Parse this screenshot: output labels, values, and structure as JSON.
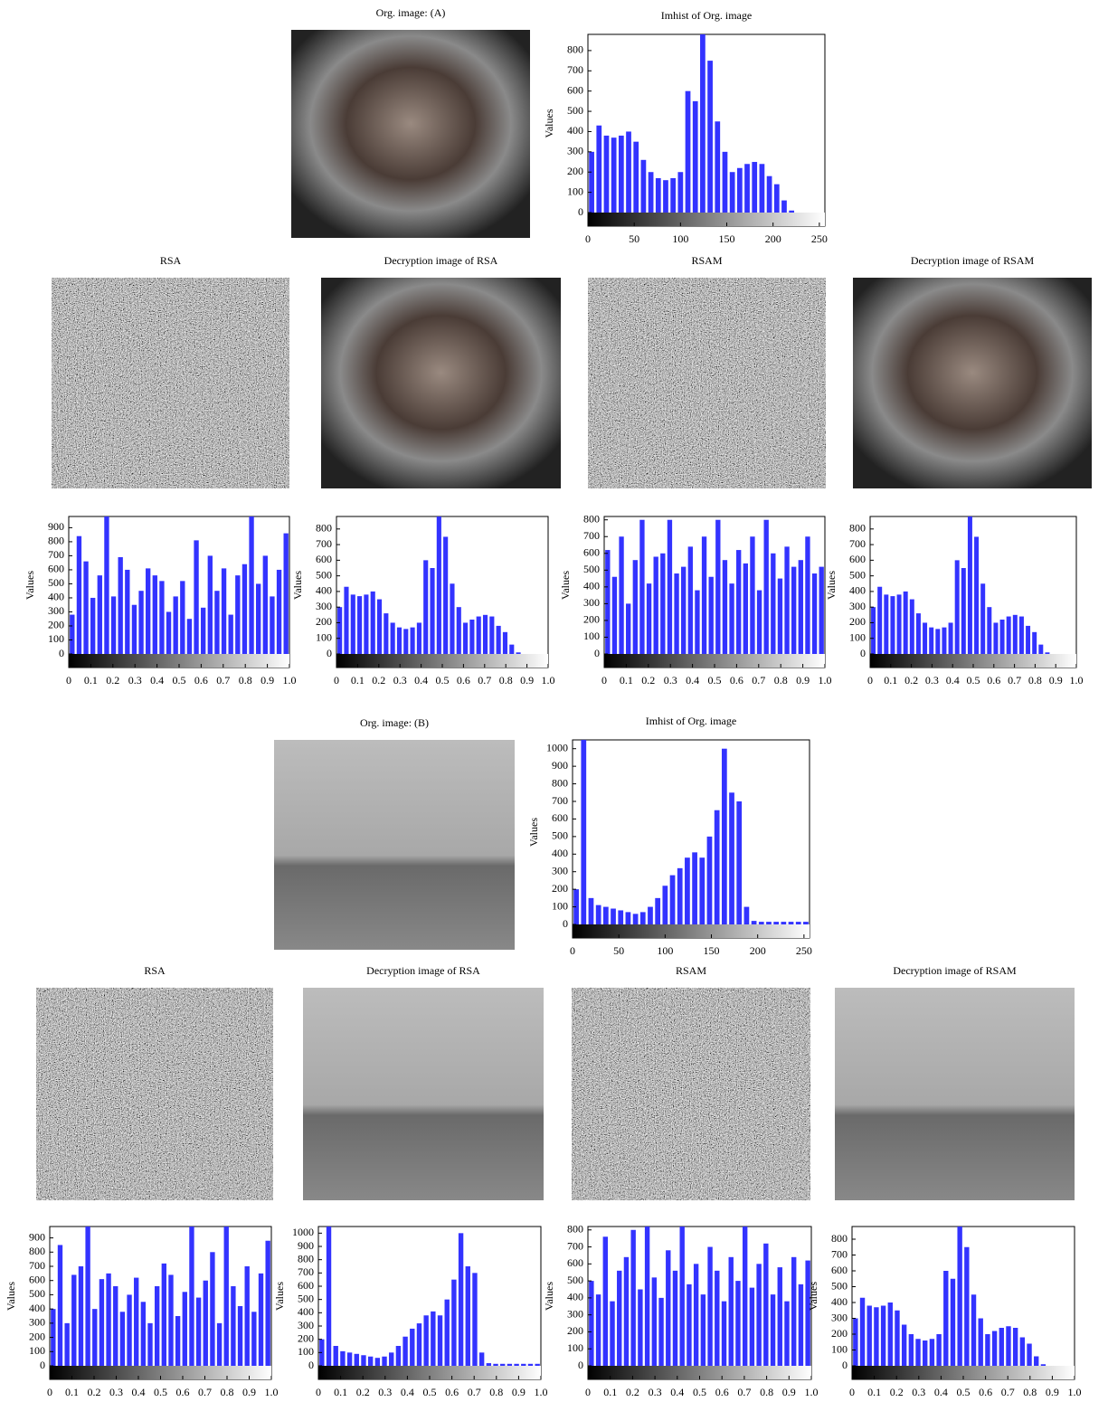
{
  "images": [
    {
      "title": "Org. image: (A)"
    },
    {
      "title": "RSA"
    },
    {
      "title": "Decryption image of RSA"
    },
    {
      "title": "RSAM"
    },
    {
      "title": "Decryption image of RSAM"
    },
    {
      "title": "Org. image: (B)"
    },
    {
      "title": "RSA"
    },
    {
      "title": "Decryption image of RSA"
    },
    {
      "title": "RSAM"
    },
    {
      "title": "Decryption image of RSAM"
    }
  ],
  "chart_data": [
    {
      "type": "histogram",
      "title": "Imhist of Org. image",
      "ylabel": "Values",
      "color": "#3333ff",
      "bins": [
        0,
        8,
        16,
        24,
        32,
        40,
        48,
        56,
        64,
        72,
        80,
        88,
        96,
        104,
        112,
        120,
        128,
        136,
        144,
        152,
        160,
        168,
        176,
        184,
        192,
        200,
        208,
        216,
        224,
        232,
        240,
        248,
        256
      ],
      "values": [
        300,
        430,
        380,
        370,
        380,
        400,
        350,
        260,
        200,
        170,
        160,
        170,
        200,
        600,
        550,
        880,
        750,
        450,
        300,
        200,
        220,
        240,
        250,
        240,
        180,
        140,
        60,
        10,
        0,
        0,
        0,
        0
      ],
      "xlim": [
        0,
        256
      ],
      "xticks": [
        0,
        50,
        100,
        150,
        200,
        250
      ],
      "ylim": [
        0,
        880
      ],
      "yticks": [
        0,
        100,
        200,
        300,
        400,
        500,
        600,
        700,
        800
      ]
    },
    {
      "type": "histogram",
      "ylabel": "Values",
      "color": "#3333ff",
      "bins": [
        0,
        0.03125,
        0.0625,
        0.09375,
        0.125,
        0.15625,
        0.1875,
        0.21875,
        0.25,
        0.28125,
        0.3125,
        0.34375,
        0.375,
        0.40625,
        0.4375,
        0.46875,
        0.5,
        0.53125,
        0.5625,
        0.59375,
        0.625,
        0.65625,
        0.6875,
        0.71875,
        0.75,
        0.78125,
        0.8125,
        0.84375,
        0.875,
        0.90625,
        0.9375,
        0.96875,
        1
      ],
      "values": [
        280,
        840,
        660,
        400,
        560,
        980,
        410,
        690,
        600,
        350,
        450,
        610,
        560,
        520,
        300,
        410,
        520,
        250,
        810,
        330,
        700,
        450,
        610,
        280,
        560,
        640,
        980,
        500,
        700,
        410,
        600,
        860
      ],
      "xlim": [
        0,
        1
      ],
      "xticks": [
        0,
        0.1,
        0.2,
        0.3,
        0.4,
        0.5,
        0.6,
        0.7,
        0.8,
        0.9,
        {
          "value": 1,
          "label": "1.0"
        }
      ],
      "ylim": [
        0,
        980
      ],
      "yticks": [
        0,
        100,
        200,
        300,
        400,
        500,
        600,
        700,
        800,
        900
      ]
    },
    {
      "type": "histogram",
      "ylabel": "Values",
      "color": "#3333ff",
      "bins": [
        0,
        0.03125,
        0.0625,
        0.09375,
        0.125,
        0.15625,
        0.1875,
        0.21875,
        0.25,
        0.28125,
        0.3125,
        0.34375,
        0.375,
        0.40625,
        0.4375,
        0.46875,
        0.5,
        0.53125,
        0.5625,
        0.59375,
        0.625,
        0.65625,
        0.6875,
        0.71875,
        0.75,
        0.78125,
        0.8125,
        0.84375,
        0.875,
        0.90625,
        0.9375,
        0.96875,
        1
      ],
      "values": [
        300,
        430,
        380,
        370,
        380,
        400,
        350,
        260,
        200,
        170,
        160,
        170,
        200,
        600,
        550,
        880,
        750,
        450,
        300,
        200,
        220,
        240,
        250,
        240,
        180,
        140,
        60,
        10,
        0,
        0,
        0,
        0
      ],
      "xlim": [
        0,
        1
      ],
      "xticks": [
        0,
        0.1,
        0.2,
        0.3,
        0.4,
        0.5,
        0.6,
        0.7,
        0.8,
        0.9,
        {
          "value": 1,
          "label": "1.0"
        }
      ],
      "ylim": [
        0,
        880
      ],
      "yticks": [
        0,
        100,
        200,
        300,
        400,
        500,
        600,
        700,
        800
      ]
    },
    {
      "type": "histogram",
      "ylabel": "Values",
      "color": "#3333ff",
      "bins": [
        0,
        0.03125,
        0.0625,
        0.09375,
        0.125,
        0.15625,
        0.1875,
        0.21875,
        0.25,
        0.28125,
        0.3125,
        0.34375,
        0.375,
        0.40625,
        0.4375,
        0.46875,
        0.5,
        0.53125,
        0.5625,
        0.59375,
        0.625,
        0.65625,
        0.6875,
        0.71875,
        0.75,
        0.78125,
        0.8125,
        0.84375,
        0.875,
        0.90625,
        0.9375,
        0.96875,
        1
      ],
      "values": [
        620,
        460,
        700,
        300,
        560,
        800,
        420,
        580,
        600,
        800,
        480,
        520,
        640,
        380,
        700,
        460,
        800,
        560,
        420,
        620,
        540,
        700,
        380,
        800,
        600,
        450,
        640,
        520,
        560,
        700,
        480,
        520
      ],
      "xlim": [
        0,
        1
      ],
      "xticks": [
        0,
        0.1,
        0.2,
        0.3,
        0.4,
        0.5,
        0.6,
        0.7,
        0.8,
        0.9,
        {
          "value": 1,
          "label": "1.0"
        }
      ],
      "ylim": [
        0,
        820
      ],
      "yticks": [
        0,
        100,
        200,
        300,
        400,
        500,
        600,
        700,
        800
      ]
    },
    {
      "type": "histogram",
      "ylabel": "Values",
      "color": "#3333ff",
      "bins": [
        0,
        0.03125,
        0.0625,
        0.09375,
        0.125,
        0.15625,
        0.1875,
        0.21875,
        0.25,
        0.28125,
        0.3125,
        0.34375,
        0.375,
        0.40625,
        0.4375,
        0.46875,
        0.5,
        0.53125,
        0.5625,
        0.59375,
        0.625,
        0.65625,
        0.6875,
        0.71875,
        0.75,
        0.78125,
        0.8125,
        0.84375,
        0.875,
        0.90625,
        0.9375,
        0.96875,
        1
      ],
      "values": [
        300,
        430,
        380,
        370,
        380,
        400,
        350,
        260,
        200,
        170,
        160,
        170,
        200,
        600,
        550,
        880,
        750,
        450,
        300,
        200,
        220,
        240,
        250,
        240,
        180,
        140,
        60,
        10,
        0,
        0,
        0,
        0
      ],
      "xlim": [
        0,
        1
      ],
      "xticks": [
        0,
        0.1,
        0.2,
        0.3,
        0.4,
        0.5,
        0.6,
        0.7,
        0.8,
        0.9,
        {
          "value": 1,
          "label": "1.0"
        }
      ],
      "ylim": [
        0,
        880
      ],
      "yticks": [
        0,
        100,
        200,
        300,
        400,
        500,
        600,
        700,
        800
      ]
    },
    {
      "type": "histogram",
      "title": "Imhist of Org. image",
      "ylabel": "Values",
      "color": "#3333ff",
      "bins": [
        0,
        8,
        16,
        24,
        32,
        40,
        48,
        56,
        64,
        72,
        80,
        88,
        96,
        104,
        112,
        120,
        128,
        136,
        144,
        152,
        160,
        168,
        176,
        184,
        192,
        200,
        208,
        216,
        224,
        232,
        240,
        248,
        256
      ],
      "values": [
        200,
        1050,
        150,
        110,
        100,
        90,
        80,
        70,
        60,
        70,
        100,
        150,
        220,
        280,
        320,
        380,
        410,
        380,
        500,
        650,
        1000,
        750,
        700,
        100,
        20,
        15,
        15,
        15,
        15,
        15,
        15,
        15
      ],
      "xlim": [
        0,
        256
      ],
      "xticks": [
        0,
        50,
        100,
        150,
        200,
        250
      ],
      "ylim": [
        0,
        1050
      ],
      "yticks": [
        0,
        100,
        200,
        300,
        400,
        500,
        600,
        700,
        800,
        900,
        1000
      ]
    },
    {
      "type": "histogram",
      "ylabel": "Values",
      "color": "#3333ff",
      "bins": [
        0,
        0.03125,
        0.0625,
        0.09375,
        0.125,
        0.15625,
        0.1875,
        0.21875,
        0.25,
        0.28125,
        0.3125,
        0.34375,
        0.375,
        0.40625,
        0.4375,
        0.46875,
        0.5,
        0.53125,
        0.5625,
        0.59375,
        0.625,
        0.65625,
        0.6875,
        0.71875,
        0.75,
        0.78125,
        0.8125,
        0.84375,
        0.875,
        0.90625,
        0.9375,
        0.96875,
        1
      ],
      "values": [
        400,
        850,
        300,
        640,
        700,
        980,
        400,
        610,
        650,
        560,
        380,
        500,
        620,
        450,
        300,
        560,
        720,
        640,
        350,
        520,
        980,
        480,
        600,
        800,
        300,
        980,
        560,
        420,
        700,
        380,
        650,
        880
      ],
      "xlim": [
        0,
        1
      ],
      "xticks": [
        0,
        0.1,
        0.2,
        0.3,
        0.4,
        0.5,
        0.6,
        0.7,
        0.8,
        0.9,
        {
          "value": 1,
          "label": "1.0"
        }
      ],
      "ylim": [
        0,
        980
      ],
      "yticks": [
        0,
        100,
        200,
        300,
        400,
        500,
        600,
        700,
        800,
        900
      ]
    },
    {
      "type": "histogram",
      "ylabel": "Values",
      "color": "#3333ff",
      "bins": [
        0,
        0.03125,
        0.0625,
        0.09375,
        0.125,
        0.15625,
        0.1875,
        0.21875,
        0.25,
        0.28125,
        0.3125,
        0.34375,
        0.375,
        0.40625,
        0.4375,
        0.46875,
        0.5,
        0.53125,
        0.5625,
        0.59375,
        0.625,
        0.65625,
        0.6875,
        0.71875,
        0.75,
        0.78125,
        0.8125,
        0.84375,
        0.875,
        0.90625,
        0.9375,
        0.96875,
        1
      ],
      "values": [
        200,
        1050,
        150,
        110,
        100,
        90,
        80,
        70,
        60,
        70,
        100,
        150,
        220,
        280,
        320,
        380,
        410,
        380,
        500,
        650,
        1000,
        750,
        700,
        100,
        20,
        15,
        15,
        15,
        15,
        15,
        15,
        15
      ],
      "xlim": [
        0,
        1
      ],
      "xticks": [
        0,
        0.1,
        0.2,
        0.3,
        0.4,
        0.5,
        0.6,
        0.7,
        0.8,
        0.9,
        {
          "value": 1,
          "label": "1.0"
        }
      ],
      "ylim": [
        0,
        1050
      ],
      "yticks": [
        0,
        100,
        200,
        300,
        400,
        500,
        600,
        700,
        800,
        900,
        1000
      ]
    },
    {
      "type": "histogram",
      "ylabel": "Values",
      "color": "#3333ff",
      "bins": [
        0,
        0.03125,
        0.0625,
        0.09375,
        0.125,
        0.15625,
        0.1875,
        0.21875,
        0.25,
        0.28125,
        0.3125,
        0.34375,
        0.375,
        0.40625,
        0.4375,
        0.46875,
        0.5,
        0.53125,
        0.5625,
        0.59375,
        0.625,
        0.65625,
        0.6875,
        0.71875,
        0.75,
        0.78125,
        0.8125,
        0.84375,
        0.875,
        0.90625,
        0.9375,
        0.96875,
        1
      ],
      "values": [
        500,
        420,
        760,
        380,
        560,
        640,
        800,
        450,
        820,
        520,
        400,
        680,
        560,
        820,
        480,
        600,
        420,
        700,
        560,
        380,
        640,
        500,
        820,
        460,
        600,
        720,
        420,
        580,
        380,
        640,
        480,
        620
      ],
      "xlim": [
        0,
        1
      ],
      "xticks": [
        0,
        0.1,
        0.2,
        0.3,
        0.4,
        0.5,
        0.6,
        0.7,
        0.8,
        0.9,
        {
          "value": 1,
          "label": "1.0"
        }
      ],
      "ylim": [
        0,
        820
      ],
      "yticks": [
        0,
        100,
        200,
        300,
        400,
        500,
        600,
        700,
        800
      ]
    },
    {
      "type": "histogram",
      "ylabel": "Values",
      "color": "#3333ff",
      "bins": [
        0,
        0.03125,
        0.0625,
        0.09375,
        0.125,
        0.15625,
        0.1875,
        0.21875,
        0.25,
        0.28125,
        0.3125,
        0.34375,
        0.375,
        0.40625,
        0.4375,
        0.46875,
        0.5,
        0.53125,
        0.5625,
        0.59375,
        0.625,
        0.65625,
        0.6875,
        0.71875,
        0.75,
        0.78125,
        0.8125,
        0.84375,
        0.875,
        0.90625,
        0.9375,
        0.96875,
        1
      ],
      "values": [
        300,
        430,
        380,
        370,
        380,
        400,
        350,
        260,
        200,
        170,
        160,
        170,
        200,
        600,
        550,
        880,
        750,
        450,
        300,
        200,
        220,
        240,
        250,
        240,
        180,
        140,
        60,
        10,
        0,
        0,
        0,
        0
      ],
      "xlim": [
        0,
        1
      ],
      "xticks": [
        0,
        0.1,
        0.2,
        0.3,
        0.4,
        0.5,
        0.6,
        0.7,
        0.8,
        0.9,
        {
          "value": 1,
          "label": "1.0"
        }
      ],
      "ylim": [
        0,
        880
      ],
      "yticks": [
        0,
        100,
        200,
        300,
        400,
        500,
        600,
        700,
        800
      ]
    }
  ]
}
